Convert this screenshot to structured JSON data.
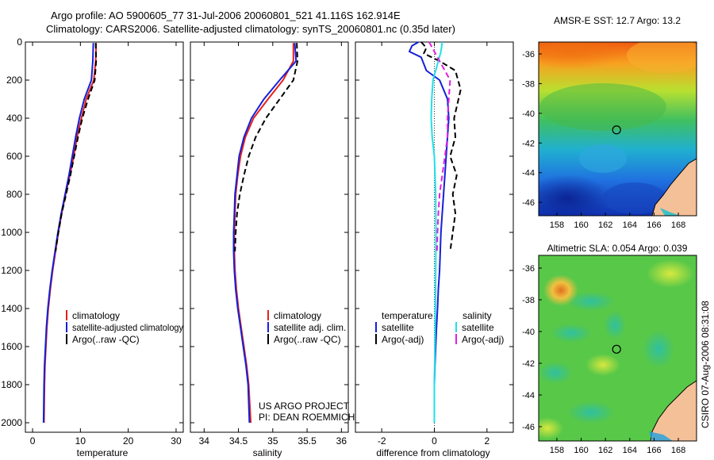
{
  "header": {
    "line1": "Argo profile: AO 5900605_77 31-Jul-2006 20060801_521 41.116S 162.914E",
    "line2": "Climatology: CARS2006. Satellite-adjusted climatology: synTS_20060801.nc (0.35d later)"
  },
  "colors": {
    "climatology": "#e8201c",
    "satellite": "#1520d8",
    "argo": "#000000",
    "salinity_sat": "#20e0e8",
    "salinity_argo": "#e020e0"
  },
  "chart_data": [
    {
      "type": "line",
      "name": "temperature-panel",
      "xlabel": "temperature",
      "ylabel": "",
      "xlim": [
        -1.5,
        31.5
      ],
      "ylim": [
        2050,
        0
      ],
      "xticks": [
        0,
        10,
        20,
        30
      ],
      "yticks": [
        0,
        200,
        400,
        600,
        800,
        1000,
        1200,
        1400,
        1600,
        1800,
        2000
      ],
      "legend": [
        "climatology",
        "satellite-adjusted climatology",
        "Argo(..raw -QC)"
      ],
      "series": [
        {
          "name": "climatology",
          "style": "solid",
          "color": "#e8201c",
          "x": [
            13.3,
            13.2,
            12.8,
            11.2,
            10.2,
            9.3,
            8.6,
            7.8,
            6.9,
            6.1,
            5.4,
            4.8,
            4.2,
            3.7,
            3.3,
            3.0,
            2.8,
            2.6,
            2.5,
            2.4
          ],
          "y": [
            5,
            100,
            200,
            300,
            400,
            500,
            600,
            700,
            800,
            900,
            1000,
            1100,
            1200,
            1300,
            1400,
            1500,
            1600,
            1700,
            1800,
            2000
          ]
        },
        {
          "name": "satellite-adjusted climatology",
          "style": "solid",
          "color": "#1520d8",
          "x": [
            12.7,
            12.6,
            12.3,
            10.8,
            9.8,
            9.0,
            8.3,
            7.6,
            6.8,
            6.0,
            5.3,
            4.7,
            4.1,
            3.6,
            3.2,
            2.9,
            2.7,
            2.5,
            2.4,
            2.3
          ],
          "y": [
            5,
            100,
            200,
            300,
            400,
            500,
            600,
            700,
            800,
            900,
            1000,
            1100,
            1200,
            1300,
            1400,
            1500,
            1600,
            1700,
            1800,
            2000
          ]
        },
        {
          "name": "Argo(..raw -QC)",
          "style": "dash",
          "color": "#000000",
          "x": [
            13.2,
            13.3,
            13.0,
            11.6,
            10.4,
            9.5,
            8.7,
            7.9,
            7.0,
            6.1,
            5.4,
            4.8
          ],
          "y": [
            5,
            100,
            200,
            300,
            400,
            500,
            600,
            700,
            800,
            900,
            1000,
            1100
          ]
        }
      ]
    },
    {
      "type": "line",
      "name": "salinity-panel",
      "xlabel": "salinity",
      "xlim": [
        33.8,
        36.1
      ],
      "ylim": [
        2050,
        0
      ],
      "xticks": [
        34,
        34.5,
        35,
        35.5,
        36
      ],
      "legend": [
        "climatology",
        "satellite adj. clim.",
        "Argo(..raw -QC)"
      ],
      "annotation": [
        "US ARGO PROJECT",
        "PI: DEAN ROEMMICH"
      ],
      "series": [
        {
          "name": "climatology",
          "style": "solid",
          "color": "#e8201c",
          "x": [
            35.3,
            35.3,
            35.15,
            34.93,
            34.72,
            34.6,
            34.53,
            34.49,
            34.46,
            34.45,
            34.44,
            34.44,
            34.45,
            34.47,
            34.5,
            34.54,
            34.58,
            34.62,
            34.65,
            34.68
          ],
          "y": [
            5,
            100,
            200,
            300,
            400,
            500,
            600,
            700,
            800,
            900,
            1000,
            1100,
            1200,
            1300,
            1400,
            1500,
            1600,
            1700,
            1800,
            2000
          ]
        },
        {
          "name": "satellite adj. clim.",
          "style": "solid",
          "color": "#1520d8",
          "x": [
            35.32,
            35.34,
            35.1,
            34.87,
            34.69,
            34.58,
            34.51,
            34.48,
            34.45,
            34.44,
            34.43,
            34.43,
            34.44,
            34.46,
            34.49,
            34.53,
            34.57,
            34.61,
            34.64,
            34.66
          ],
          "y": [
            5,
            100,
            200,
            300,
            400,
            500,
            600,
            700,
            800,
            900,
            1000,
            1100,
            1200,
            1300,
            1400,
            1500,
            1600,
            1700,
            1800,
            2000
          ]
        },
        {
          "name": "Argo(..raw -QC)",
          "style": "dash",
          "color": "#000000",
          "x": [
            35.35,
            35.36,
            35.3,
            35.1,
            34.9,
            34.75,
            34.65,
            34.58,
            34.52,
            34.48,
            34.46,
            34.45
          ],
          "y": [
            5,
            100,
            200,
            300,
            400,
            500,
            600,
            700,
            800,
            900,
            1000,
            1100
          ]
        }
      ]
    },
    {
      "type": "line",
      "name": "difference-panel",
      "xlabel": "difference from climatology",
      "xlim": [
        -3,
        3
      ],
      "ylim": [
        2050,
        0
      ],
      "xticks": [
        -2,
        0,
        2
      ],
      "legend_left_title": "temperature",
      "legend_right_title": "salinity",
      "legend": [
        "satellite",
        "Argo(-adj)",
        "satellite",
        "Argo(-adj)"
      ],
      "series": [
        {
          "name": "temperature satellite",
          "style": "solid",
          "color": "#1520d8",
          "x": [
            -0.6,
            -0.85,
            -0.95,
            -0.5,
            -0.3,
            0.2,
            0.5,
            0.55,
            0.45,
            0.35,
            0.25,
            0.2,
            0.15,
            0.12,
            0.08,
            0.05,
            0.02,
            0.0,
            0.0
          ],
          "y": [
            0,
            20,
            50,
            80,
            150,
            200,
            300,
            400,
            600,
            800,
            1000,
            1200,
            1300,
            1400,
            1500,
            1600,
            1700,
            1800,
            2000
          ]
        },
        {
          "name": "temperature Argo(-adj)",
          "style": "dash",
          "color": "#000000",
          "x": [
            -0.5,
            -0.3,
            -0.4,
            0.2,
            0.8,
            1.0,
            0.75,
            0.8,
            0.6,
            0.85,
            0.7,
            0.8,
            0.7,
            0.6
          ],
          "y": [
            0,
            30,
            60,
            100,
            150,
            250,
            400,
            500,
            600,
            700,
            800,
            900,
            1000,
            1100
          ]
        },
        {
          "name": "salinity satellite",
          "style": "solid",
          "color": "#20e0e8",
          "x": [
            0.3,
            0.25,
            0.15,
            -0.05,
            -0.1,
            -0.12,
            -0.08,
            0.0,
            0.05,
            0.06,
            0.05,
            0.04,
            0.02,
            0.0,
            0.0
          ],
          "y": [
            0,
            50,
            100,
            200,
            300,
            400,
            500,
            600,
            800,
            1000,
            1200,
            1400,
            1600,
            1800,
            2000
          ]
        },
        {
          "name": "salinity Argo(-adj)",
          "style": "dash",
          "color": "#e020e0",
          "x": [
            -0.2,
            0.2,
            0.6,
            0.55,
            0.5,
            0.5,
            0.4,
            0.3,
            0.2,
            0.15,
            0.12,
            0.1
          ],
          "y": [
            0,
            100,
            200,
            300,
            400,
            500,
            600,
            700,
            800,
            900,
            1000,
            1100
          ]
        }
      ]
    },
    {
      "type": "heatmap",
      "name": "sst-map",
      "title": "AMSR-E SST: 12.7 Argo: 13.2",
      "xticks": [
        158,
        160,
        162,
        164,
        166,
        168
      ],
      "yticks": [
        -36,
        -38,
        -40,
        -42,
        -44,
        -46
      ],
      "xlim": [
        156.5,
        169.5
      ],
      "ylim": [
        -46.9,
        -35.2
      ],
      "marker": {
        "lon": 162.914,
        "lat": -41.116
      }
    },
    {
      "type": "heatmap",
      "name": "sla-map",
      "title": "Altimetric SLA: 0.054 Argo: 0.039",
      "xticks": [
        158,
        160,
        162,
        164,
        166,
        168
      ],
      "yticks": [
        -36,
        -38,
        -40,
        -42,
        -44,
        -46
      ],
      "xlim": [
        156.5,
        169.5
      ],
      "ylim": [
        -46.9,
        -35.2
      ],
      "marker": {
        "lon": 162.914,
        "lat": -41.116
      }
    }
  ],
  "side_label": "CSIRO 07-Aug-2006 08:31:08"
}
